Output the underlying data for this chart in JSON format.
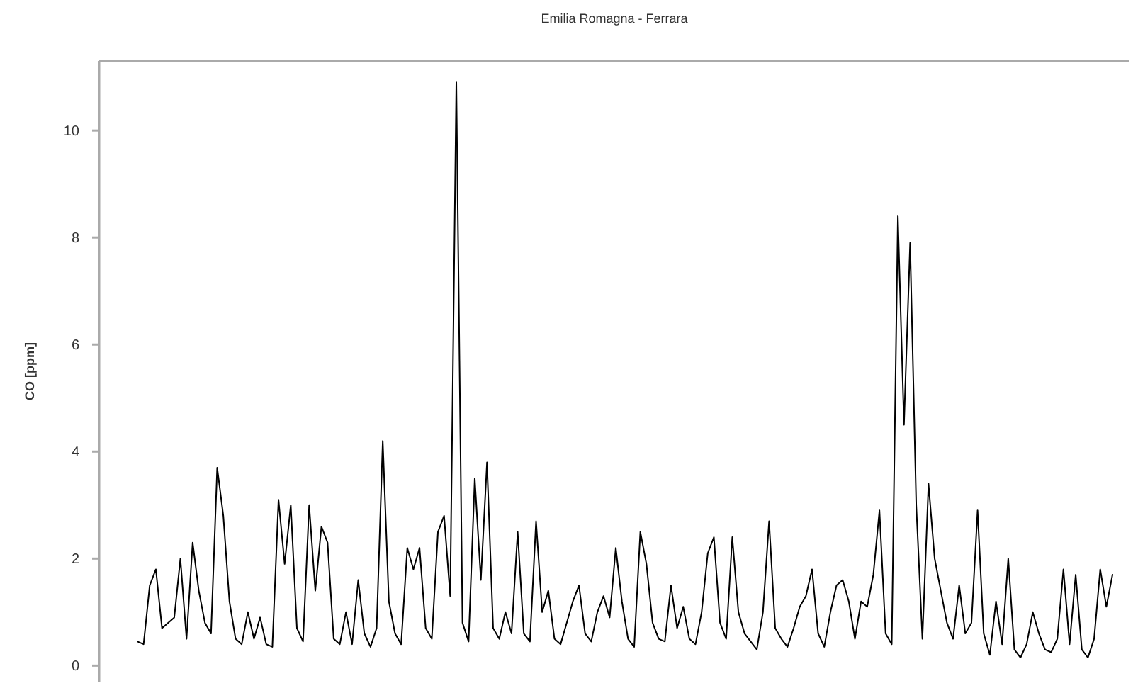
{
  "chart_data": {
    "type": "line",
    "title": "Emilia Romagna - Ferrara",
    "ylabel": "CO [ppm]",
    "categories": [
      null,
      null,
      null,
      null,
      null,
      null,
      null,
      null,
      null,
      null,
      null,
      null,
      null,
      null,
      null,
      null,
      null,
      null,
      null,
      null,
      null,
      null,
      null,
      null,
      null,
      null,
      null,
      null,
      null,
      null,
      null,
      null,
      null,
      null,
      null,
      null,
      null,
      null,
      null,
      null,
      null,
      null,
      null,
      null,
      null,
      null,
      null,
      null,
      null,
      null,
      null,
      null,
      null,
      null,
      null,
      null,
      null,
      null,
      null,
      null,
      null,
      null,
      null,
      null,
      null,
      null,
      null,
      null,
      null,
      null,
      null,
      null,
      null,
      null,
      null,
      null,
      null,
      null,
      null,
      null,
      null,
      null,
      null,
      null,
      null,
      null,
      null,
      null,
      null,
      null,
      null,
      null,
      null,
      null,
      null,
      null,
      null,
      null,
      null,
      null,
      null,
      null,
      null,
      null,
      null,
      null,
      null,
      null,
      null,
      null,
      null,
      null,
      null,
      null,
      null,
      null,
      null,
      null,
      null,
      null,
      null,
      null,
      null,
      null,
      null,
      null,
      null,
      null,
      null,
      null,
      null,
      null,
      null,
      null,
      null,
      null,
      null,
      null,
      null,
      null,
      null,
      null,
      null,
      null,
      null,
      null,
      null,
      null,
      null,
      null,
      null,
      null,
      null,
      null,
      null,
      null,
      null,
      null,
      null,
      null
    ],
    "series": [
      {
        "color": "#000000",
        "values": [
          0.45,
          0.4,
          1.5,
          1.8,
          0.7,
          0.8,
          0.9,
          2.0,
          0.5,
          2.3,
          1.4,
          0.8,
          0.6,
          3.7,
          2.8,
          1.2,
          0.5,
          0.4,
          1.0,
          0.5,
          0.9,
          0.4,
          0.35,
          3.1,
          1.9,
          3.0,
          0.7,
          0.45,
          3.0,
          1.4,
          2.6,
          2.3,
          0.5,
          0.4,
          1.0,
          0.4,
          1.6,
          0.6,
          0.35,
          0.7,
          4.2,
          1.2,
          0.6,
          0.4,
          2.2,
          1.8,
          2.2,
          0.7,
          0.5,
          2.5,
          2.8,
          1.3,
          10.9,
          0.8,
          0.45,
          3.5,
          1.6,
          3.8,
          0.7,
          0.5,
          1.0,
          0.6,
          2.5,
          0.6,
          0.45,
          2.7,
          1.0,
          1.4,
          0.5,
          0.4,
          0.8,
          1.2,
          1.5,
          0.6,
          0.45,
          1.0,
          1.3,
          0.9,
          2.2,
          1.2,
          0.5,
          0.35,
          2.5,
          1.9,
          0.8,
          0.5,
          0.45,
          1.5,
          0.7,
          1.1,
          0.5,
          0.4,
          1.0,
          2.1,
          2.4,
          0.8,
          0.5,
          2.4,
          1.0,
          0.6,
          0.45,
          0.3,
          1.0,
          2.7,
          0.7,
          0.5,
          0.35,
          0.7,
          1.1,
          1.3,
          1.8,
          0.6,
          0.35,
          1.0,
          1.5,
          1.6,
          1.2,
          0.5,
          1.2,
          1.1,
          1.7,
          2.9,
          0.6,
          0.4,
          8.4,
          4.5,
          7.9,
          3.0,
          0.5,
          3.4,
          2.0,
          1.4,
          0.8,
          0.5,
          1.5,
          0.6,
          0.8,
          2.9,
          0.6,
          0.2,
          1.2,
          0.4,
          2.0,
          0.3,
          0.15,
          0.4,
          1.0,
          0.6,
          0.3,
          0.25,
          0.5,
          1.8,
          0.4,
          1.7,
          0.3,
          0.15,
          0.5,
          1.8,
          1.1,
          1.7
        ]
      }
    ],
    "ylim": [
      -0.3,
      11.3
    ],
    "yticks": [
      0,
      2,
      4,
      6,
      8,
      10
    ],
    "tick_labels": "y"
  }
}
